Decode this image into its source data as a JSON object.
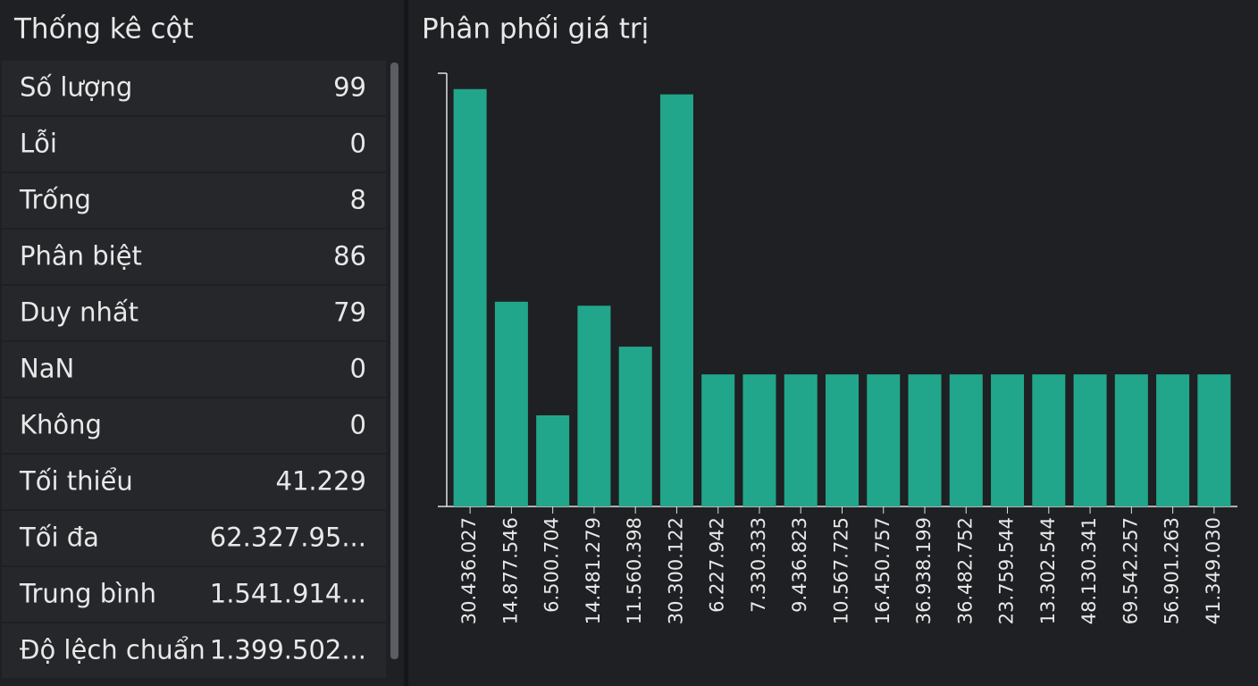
{
  "stats": {
    "title": "Thống kê cột",
    "rows": [
      [
        "Số lượng",
        "99"
      ],
      [
        "Lỗi",
        "0"
      ],
      [
        "Trống",
        "8"
      ],
      [
        "Phân biệt",
        "86"
      ],
      [
        "Duy nhất",
        "79"
      ],
      [
        "NaN",
        "0"
      ],
      [
        "Không",
        "0"
      ],
      [
        "Tối thiểu",
        "41.229"
      ],
      [
        "Tối đa",
        "62.327.95..."
      ],
      [
        "Trung bình",
        "1.541.914..."
      ],
      [
        "Độ lệch chuẩn",
        "1.399.502..."
      ]
    ]
  },
  "chart_data": {
    "type": "bar",
    "title": "Phân phối giá trị",
    "categories": [
      "30.436.027",
      "14.877.546",
      "6.500.704",
      "14.481.279",
      "11.560.398",
      "30.300.122",
      "6.227.942",
      "7.330.333",
      "9.436.823",
      "10.567.725",
      "16.450.757",
      "36.938.199",
      "36.482.752",
      "23.759.544",
      "13.302.544",
      "48.130.341",
      "69.542.257",
      "56.901.263",
      "41.349.030"
    ],
    "values": [
      31.6,
      15.5,
      6.9,
      15.2,
      12.1,
      31.2,
      10,
      10,
      10,
      10,
      10,
      10,
      10,
      10,
      10,
      10,
      10,
      10,
      10
    ],
    "color": "#22a68b",
    "ylim": [
      0,
      32.8
    ]
  }
}
